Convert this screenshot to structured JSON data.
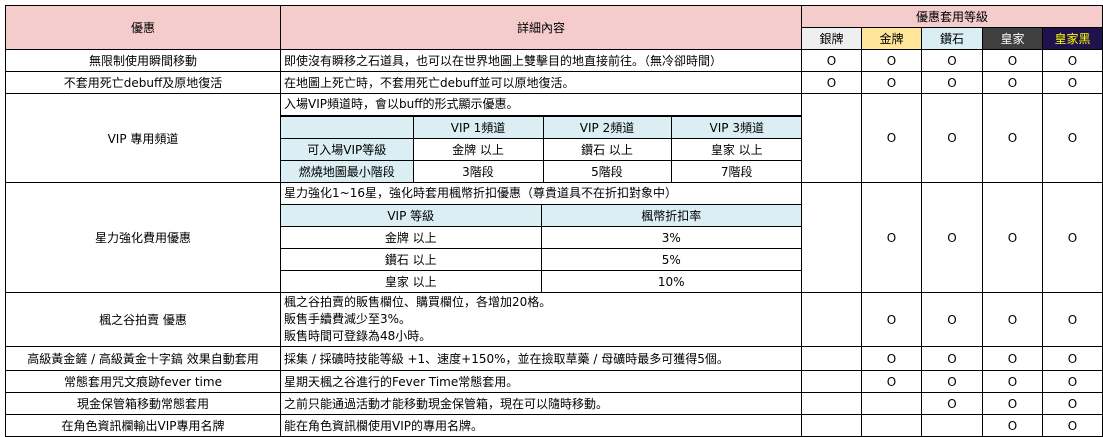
{
  "header": {
    "benefit": "優惠",
    "detail": "詳細內容",
    "tiers_title": "優惠套用等級",
    "tiers": [
      {
        "label": "銀牌",
        "bg": "#efefef",
        "color": "#000000"
      },
      {
        "label": "金牌",
        "bg": "#ffe599",
        "color": "#000000"
      },
      {
        "label": "鑽石",
        "bg": "#daeef3",
        "color": "#000000"
      },
      {
        "label": "皇家",
        "bg": "#3f3f3f",
        "color": "#ffffff"
      },
      {
        "label": "皇家黑",
        "bg": "#20124d",
        "color": "#ffff00"
      }
    ]
  },
  "mark": "O",
  "rows": [
    {
      "name": "無限制使用瞬間移動",
      "detail": [
        "即使沒有瞬移之石道具，也可以在世界地圖上雙擊目的地直接前往。（無冷卻時間）"
      ],
      "tiers": [
        true,
        true,
        true,
        true,
        true
      ]
    },
    {
      "name": "不套用死亡debuff及原地復活",
      "detail": [
        "在地圖上死亡時，不套用死亡debuff並可以原地復活。"
      ],
      "tiers": [
        true,
        true,
        true,
        true,
        true
      ]
    },
    {
      "name": "VIP 專用頻道",
      "detail": [
        "入場VIP頻道時，會以buff的形式顯示優惠。"
      ],
      "table": {
        "header": [
          "",
          "VIP 1頻道",
          "VIP 2頻道",
          "VIP 3頻道"
        ],
        "rows": [
          [
            "可入場VIP等級",
            "金牌 以上",
            "鑽石 以上",
            "皇家 以上"
          ],
          [
            "燃燒地圖最小階段",
            "3階段",
            "5階段",
            "7階段"
          ]
        ]
      },
      "tiers": [
        false,
        true,
        true,
        true,
        true
      ]
    },
    {
      "name": "星力強化費用優惠",
      "detail": [
        "星力強化1~16星，強化時套用楓幣折扣優惠（尊貴道具不在折扣對象中）"
      ],
      "table": {
        "header": [
          "VIP 等級",
          "楓幣折扣率"
        ],
        "rows": [
          [
            "金牌 以上",
            "3%"
          ],
          [
            "鑽石 以上",
            "5%"
          ],
          [
            "皇家 以上",
            "10%"
          ]
        ]
      },
      "tiers": [
        false,
        true,
        true,
        true,
        true
      ]
    },
    {
      "name": "楓之谷拍賣 優惠",
      "detail": [
        "楓之谷拍賣的販售欄位、購買欄位，各增加20格。",
        "販售手續費減少至3%。",
        "販售時間可登錄為48小時。"
      ],
      "tiers": [
        false,
        true,
        true,
        true,
        true
      ]
    },
    {
      "name": "高級黃金鏟 / 高級黃金十字鎬 效果自動套用",
      "detail": [
        "採集 / 採礦時技能等級 +1、速度+150%，並在撿取草藥 / 母礦時最多可獲得5個。"
      ],
      "tiers": [
        false,
        true,
        true,
        true,
        true
      ]
    },
    {
      "name": "常態套用咒文痕跡fever time",
      "detail": [
        "星期天楓之谷進行的Fever Time常態套用。"
      ],
      "tiers": [
        false,
        true,
        true,
        true,
        true
      ]
    },
    {
      "name": "現金保管箱移動常態套用",
      "detail": [
        "之前只能通過活動才能移動現金保管箱，現在可以隨時移動。"
      ],
      "tiers": [
        false,
        false,
        true,
        true,
        true
      ]
    },
    {
      "name": "在角色資訊欄輸出VIP專用名牌",
      "detail": [
        "能在角色資訊欄使用VIP的專用名牌。"
      ],
      "tiers": [
        false,
        false,
        false,
        true,
        true
      ]
    }
  ]
}
